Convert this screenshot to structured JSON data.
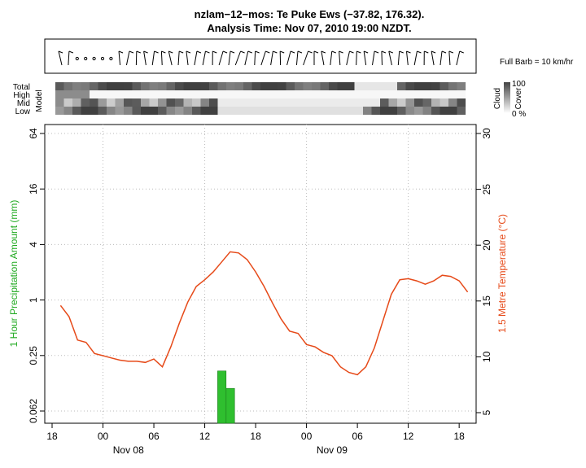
{
  "title": {
    "line1": "nzlam−12−mos: Te Puke Ews (−37.82, 176.32).",
    "line2": "Analysis Time: Nov 07, 2010 19:00 NZDT."
  },
  "wind": {
    "legend": "Full Barb = 10 km/hr"
  },
  "cloud": {
    "labels": [
      "Total",
      "High",
      "Mid",
      "Low"
    ],
    "model_label": "Model",
    "legend_top": "100",
    "legend_bottom": "0 %",
    "legend_title": "Cloud",
    "legend_sub": "Cover"
  },
  "chart_data": {
    "type": "line",
    "title": "",
    "x_start": "Nov 07 19:00",
    "x_end": "Nov 09 19:00",
    "x_ticks": [
      "18",
      "00",
      "06",
      "12",
      "18",
      "00",
      "06",
      "12",
      "18"
    ],
    "x_day_labels": [
      "Nov 08",
      "Nov 09"
    ],
    "y_left": {
      "label": "1 Hour Precipitation Amount (mm)",
      "ticks": [
        "0.062",
        "0.25",
        "1",
        "4",
        "16",
        "64"
      ],
      "scale": "log",
      "color": "#22aa22"
    },
    "y_right": {
      "label": "1.5 Metre Temperature (°C)",
      "ticks": [
        "5",
        "10",
        "15",
        "20",
        "25",
        "30"
      ],
      "ylim": [
        4.5,
        30.5
      ],
      "color": "#e64a19"
    },
    "grid": true,
    "series": [
      {
        "kind": "line",
        "color": "#e64a19",
        "x": [
          "Nov 07 19:00",
          "Nov 07 20:00",
          "Nov 07 21:00",
          "Nov 07 22:00",
          "Nov 07 23:00",
          "Nov 08 00:00",
          "Nov 08 01:00",
          "Nov 08 02:00",
          "Nov 08 03:00",
          "Nov 08 04:00",
          "Nov 08 05:00",
          "Nov 08 06:00",
          "Nov 08 07:00",
          "Nov 08 08:00",
          "Nov 08 09:00",
          "Nov 08 10:00",
          "Nov 08 11:00",
          "Nov 08 12:00",
          "Nov 08 13:00",
          "Nov 08 14:00",
          "Nov 08 15:00",
          "Nov 08 16:00",
          "Nov 08 17:00",
          "Nov 08 18:00",
          "Nov 08 19:00",
          "Nov 08 20:00",
          "Nov 08 21:00",
          "Nov 08 22:00",
          "Nov 08 23:00",
          "Nov 09 00:00",
          "Nov 09 01:00",
          "Nov 09 02:00",
          "Nov 09 03:00",
          "Nov 09 04:00",
          "Nov 09 05:00",
          "Nov 09 06:00",
          "Nov 09 07:00",
          "Nov 09 08:00",
          "Nov 09 09:00",
          "Nov 09 10:00",
          "Nov 09 11:00",
          "Nov 09 12:00",
          "Nov 09 13:00",
          "Nov 09 14:00",
          "Nov 09 15:00",
          "Nov 09 16:00",
          "Nov 09 17:00",
          "Nov 09 18:00",
          "Nov 09 19:00"
        ],
        "values": [
          14.6,
          13.6,
          11.5,
          11.3,
          10.3,
          10.1,
          9.9,
          9.7,
          9.6,
          9.6,
          9.5,
          9.8,
          9.1,
          10.9,
          13.0,
          14.9,
          16.3,
          16.9,
          17.6,
          18.5,
          19.4,
          19.3,
          18.7,
          17.6,
          16.3,
          14.8,
          13.4,
          12.3,
          12.1,
          11.1,
          10.9,
          10.4,
          10.1,
          9.1,
          8.6,
          8.4,
          9.1,
          10.8,
          13.2,
          15.6,
          16.9,
          17.0,
          16.8,
          16.5,
          16.8,
          17.3,
          17.2,
          16.8,
          15.8
        ]
      },
      {
        "kind": "bar",
        "color": "#2fbf2f",
        "x": [
          "Nov 08 14:00",
          "Nov 08 15:00"
        ],
        "values": [
          0.17,
          0.11
        ]
      }
    ]
  }
}
